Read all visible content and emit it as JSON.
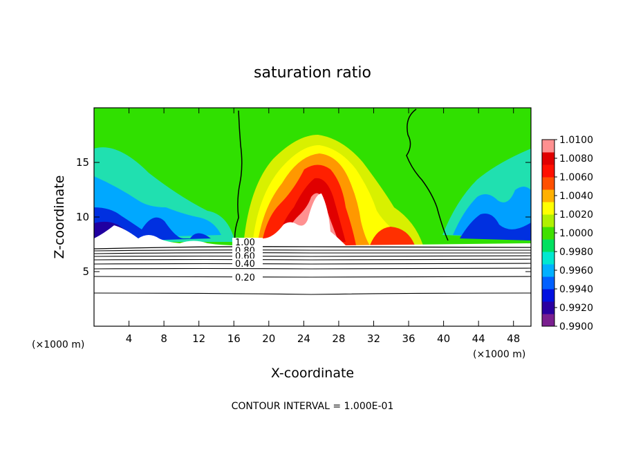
{
  "chart_data": {
    "type": "heatmap",
    "title": "saturation ratio",
    "xlabel": "X-coordinate",
    "ylabel": "Z-coordinate",
    "x_unit_left": "(×1000 m)",
    "x_unit_right": "(×1000 m)",
    "xlim": [
      0,
      50
    ],
    "ylim": [
      0,
      20
    ],
    "x_ticks": [
      "4",
      "8",
      "12",
      "16",
      "20",
      "24",
      "28",
      "32",
      "36",
      "40",
      "44",
      "48"
    ],
    "y_ticks": [
      "5",
      "10",
      "15"
    ],
    "colorbar": {
      "labels": [
        "1.0100",
        "1.0080",
        "1.0060",
        "1.0040",
        "1.0020",
        "1.0000",
        "0.9980",
        "0.9960",
        "0.9940",
        "0.9920",
        "0.9900"
      ],
      "min": 0.99,
      "max": 1.01,
      "colors": [
        "#7a1f8f",
        "#2a00a0",
        "#0010e0",
        "#0060ff",
        "#00b0ff",
        "#00e8d0",
        "#00e060",
        "#40e000",
        "#b0f000",
        "#ffff00",
        "#ffb000",
        "#ff5000",
        "#ff1000",
        "#e00000",
        "#ff9090"
      ]
    },
    "contour_labels": [
      "1.00",
      "0.80",
      "0.60",
      "0.40",
      "0.20"
    ],
    "footer": "CONTOUR INTERVAL = 1.000E-01",
    "grid": false
  }
}
